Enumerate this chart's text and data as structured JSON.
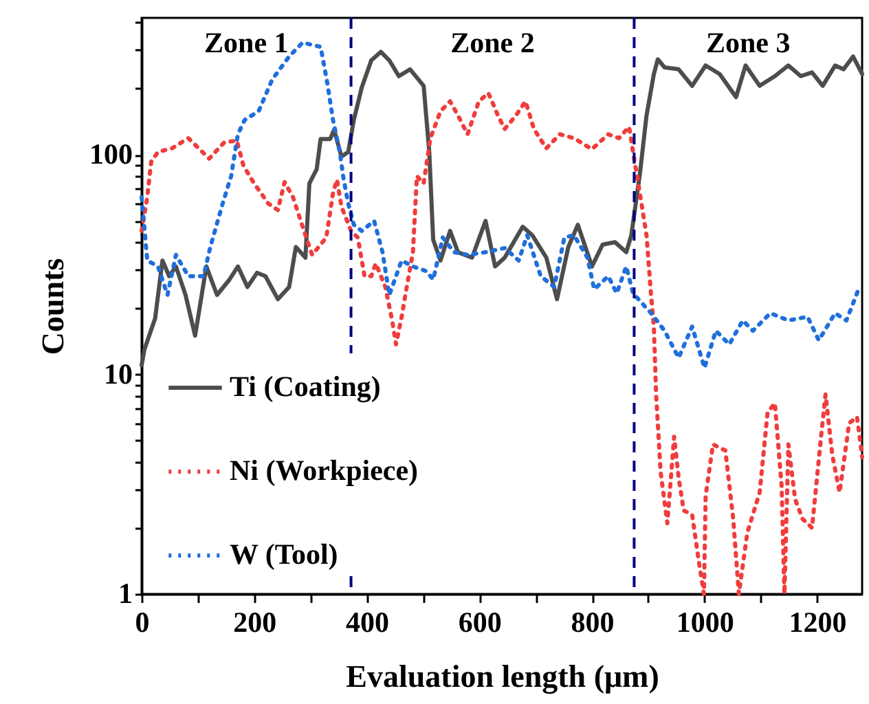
{
  "chart_data": {
    "type": "line",
    "xlabel": "Evaluation length (μm)",
    "ylabel": "Counts",
    "log": "y",
    "grid": false,
    "legend": "bottom left",
    "xlim": [
      0,
      1280
    ],
    "ylim": [
      1,
      420
    ],
    "xticks": [
      0,
      {
        "value": 100,
        "label": null
      },
      200,
      {
        "value": 300,
        "label": null
      },
      400,
      {
        "value": 500,
        "label": null
      },
      600,
      {
        "value": 700,
        "label": null
      },
      800,
      {
        "value": 900,
        "label": null
      },
      1000,
      {
        "value": 1100,
        "label": null
      },
      1200
    ],
    "yticks": [
      1,
      {
        "value": 2,
        "label": null
      },
      {
        "value": 3,
        "label": null
      },
      {
        "value": 4,
        "label": null
      },
      {
        "value": 5,
        "label": null
      },
      {
        "value": 6,
        "label": null
      },
      {
        "value": 7,
        "label": null
      },
      {
        "value": 8,
        "label": null
      },
      {
        "value": 9,
        "label": null
      },
      10,
      {
        "value": 20,
        "label": null
      },
      {
        "value": 30,
        "label": null
      },
      {
        "value": 40,
        "label": null
      },
      {
        "value": 50,
        "label": null
      },
      {
        "value": 60,
        "label": null
      },
      {
        "value": 70,
        "label": null
      },
      {
        "value": 80,
        "label": null
      },
      {
        "value": 90,
        "label": null
      },
      100,
      {
        "value": 200,
        "label": null
      },
      {
        "value": 300,
        "label": null
      },
      {
        "value": 400,
        "label": null
      }
    ],
    "annotations": [
      "Zone 1",
      "Zone 2",
      "Zone 3"
    ],
    "ref_lines": [
      {
        "axis": "x",
        "value": 372,
        "color": "#000080",
        "line_style": "dashed"
      },
      {
        "axis": "x",
        "value": 875,
        "color": "#000080",
        "line_style": "dashed"
      }
    ],
    "series": [
      {
        "name": "Ti (Coating)",
        "color": "#4d4d4d",
        "line_style": "solid",
        "x": [
          0,
          5,
          24,
          37,
          49,
          61,
          78,
          95,
          115,
          134,
          156,
          171,
          188,
          205,
          220,
          242,
          262,
          274,
          291,
          298,
          311,
          318,
          335,
          342,
          355,
          367,
          377,
          391,
          408,
          425,
          440,
          457,
          477,
          501,
          511,
          518,
          531,
          548,
          562,
          587,
          611,
          628,
          645,
          677,
          694,
          719,
          738,
          758,
          775,
          800,
          819,
          841,
          861,
          870,
          877,
          885,
          897,
          910,
          917,
          929,
          954,
          978,
          1002,
          1027,
          1056,
          1073,
          1098,
          1125,
          1149,
          1171,
          1191,
          1210,
          1232,
          1247,
          1264,
          1280
        ],
        "values": [
          11,
          13,
          18,
          33,
          28,
          31,
          23,
          15,
          31,
          23,
          27,
          31,
          25,
          29,
          28,
          22,
          25,
          38,
          34,
          74,
          86,
          118,
          118,
          130,
          98,
          103,
          144,
          202,
          269,
          294,
          269,
          228,
          245,
          206,
          103,
          41,
          33,
          45,
          36,
          34,
          50,
          31,
          34,
          47,
          43,
          34,
          22,
          38,
          48,
          31,
          39,
          40,
          36,
          43,
          58,
          81,
          151,
          233,
          272,
          250,
          245,
          206,
          255,
          233,
          183,
          255,
          206,
          228,
          255,
          228,
          237,
          206,
          255,
          245,
          280,
          233
        ]
      },
      {
        "name": "Ni (Workpiece)",
        "color": "#f03c3c",
        "line_style": "dotted",
        "x": [
          0,
          10,
          17,
          29,
          54,
          83,
          120,
          147,
          169,
          181,
          200,
          225,
          242,
          254,
          269,
          291,
          303,
          328,
          340,
          347,
          355,
          372,
          384,
          396,
          408,
          416,
          433,
          445,
          452,
          462,
          469,
          482,
          489,
          501,
          513,
          531,
          548,
          562,
          579,
          599,
          616,
          633,
          645,
          665,
          682,
          697,
          719,
          743,
          768,
          800,
          829,
          848,
          866,
          873,
          885,
          897,
          905,
          910,
          914,
          922,
          934,
          946,
          954,
          963,
          978,
          990,
          999,
          1002,
          1015,
          1037,
          1051,
          1061,
          1076,
          1098,
          1112,
          1125,
          1137,
          1142,
          1149,
          1161,
          1174,
          1191,
          1208,
          1215,
          1227,
          1240,
          1257,
          1271,
          1280
        ],
        "values": [
          45,
          64,
          93,
          103,
          107,
          119,
          96,
          114,
          116,
          89,
          74,
          60,
          56,
          75,
          64,
          43,
          35,
          42,
          67,
          77,
          58,
          45,
          42,
          28,
          28,
          32,
          25,
          17.6,
          13.7,
          18.3,
          23.4,
          36,
          80,
          74,
          119,
          158,
          175,
          151,
          124,
          175,
          191,
          151,
          131,
          151,
          175,
          131,
          107,
          124,
          119,
          106,
          124,
          119,
          134,
          103,
          67,
          43,
          23,
          16.5,
          8.1,
          3.6,
          2.1,
          5.2,
          3.4,
          2.4,
          2.3,
          1.4,
          1,
          2.8,
          4.8,
          4.5,
          2.2,
          1,
          1.9,
          2.9,
          6.7,
          7.4,
          3.1,
          1,
          4.8,
          2.7,
          2.2,
          2,
          5.5,
          8.1,
          4.3,
          2.9,
          6,
          6.4,
          4.2
        ]
      },
      {
        "name": "W (Tool)",
        "color": "#1f6fdb",
        "line_style": "dotted",
        "x": [
          0,
          10,
          29,
          46,
          61,
          83,
          110,
          122,
          144,
          159,
          171,
          183,
          208,
          232,
          262,
          286,
          318,
          330,
          340,
          352,
          359,
          367,
          377,
          391,
          413,
          428,
          440,
          462,
          482,
          506,
          518,
          535,
          555,
          579,
          611,
          645,
          670,
          685,
          709,
          733,
          751,
          768,
          792,
          804,
          829,
          844,
          861,
          873,
          905,
          929,
          954,
          978,
          1000,
          1020,
          1044,
          1068,
          1086,
          1117,
          1149,
          1183,
          1203,
          1232,
          1252,
          1269,
          1275
        ],
        "values": [
          64,
          33,
          31,
          23,
          35,
          28,
          28,
          38,
          60,
          80,
          124,
          144,
          158,
          220,
          280,
          324,
          310,
          211,
          144,
          103,
          77,
          60,
          48,
          45,
          50,
          36,
          23,
          33,
          31,
          29.5,
          27,
          42,
          36,
          35,
          36,
          37.6,
          33,
          43,
          28,
          25,
          42,
          43,
          34,
          24.4,
          28,
          23.4,
          31,
          23.4,
          19,
          15.8,
          11.9,
          16.5,
          10.7,
          15.8,
          13.7,
          17.6,
          15.8,
          19,
          17.6,
          18.3,
          14.3,
          19,
          17.6,
          22.7,
          25
        ]
      }
    ]
  }
}
